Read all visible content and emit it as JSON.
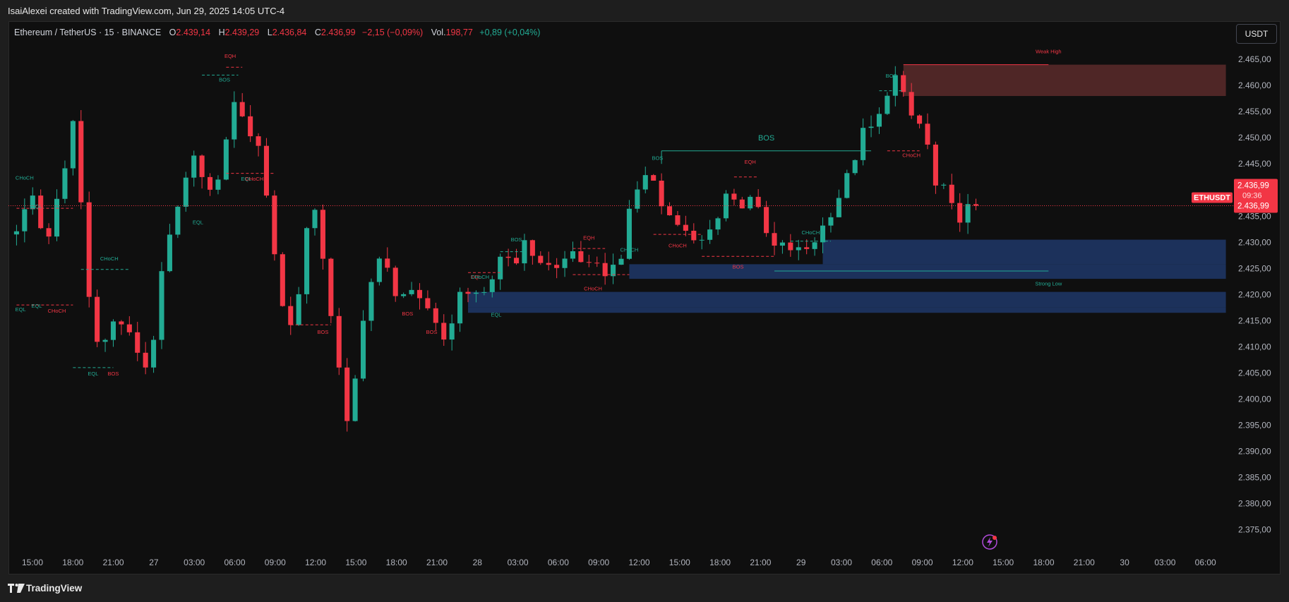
{
  "header": {
    "credit": "IsaiAlexei created with TradingView.com, Jun 29, 2025 14:05 UTC-4"
  },
  "legend": {
    "symbol": "Ethereum / TetherUS · 15 · BINANCE",
    "open_label": "O",
    "open": "2.439,14",
    "high_label": "H",
    "high": "2.439,29",
    "low_label": "L",
    "low": "2.436,84",
    "close_label": "C",
    "close": "2.436,99",
    "change": "−2,15 (−0,09%)",
    "vol_label": "Vol.",
    "vol": "198,77",
    "vol_change": "+0,89 (+0,04%)"
  },
  "currency_button": "USDT",
  "footer": {
    "brand": "TradingView"
  },
  "colors": {
    "up": "#22ab94",
    "down": "#f23645",
    "background": "#0f0f0f",
    "demand_zone": "#1f3a6e",
    "supply_zone": "#5a2a2a",
    "price_label": "#f23645"
  },
  "chart_data": {
    "type": "candlestick",
    "symbol": "ETHUSDT",
    "ylim": [
      2371,
      2468
    ],
    "y_ticks": [
      "2.465,00",
      "2.460,00",
      "2.455,00",
      "2.450,00",
      "2.445,00",
      "2.440,00",
      "2.435,00",
      "2.430,00",
      "2.425,00",
      "2.420,00",
      "2.415,00",
      "2.410,00",
      "2.405,00",
      "2.400,00",
      "2.395,00",
      "2.390,00",
      "2.385,00",
      "2.380,00",
      "2.375,00"
    ],
    "y_tick_values": [
      2465,
      2460,
      2455,
      2450,
      2445,
      2440,
      2435,
      2430,
      2425,
      2420,
      2415,
      2410,
      2405,
      2400,
      2395,
      2390,
      2385,
      2380,
      2375
    ],
    "x_ticks": [
      "15:00",
      "18:00",
      "21:00",
      "27",
      "03:00",
      "06:00",
      "09:00",
      "12:00",
      "15:00",
      "18:00",
      "21:00",
      "28",
      "03:00",
      "06:00",
      "09:00",
      "12:00",
      "15:00",
      "18:00",
      "21:00",
      "29",
      "03:00",
      "06:00",
      "09:00",
      "12:00",
      "15:00",
      "18:00",
      "21:00",
      "30",
      "03:00",
      "06:00"
    ],
    "current_price": {
      "symbol_label": "ETHUSDT",
      "price": "2.436,99",
      "countdown": "09:36",
      "value": 2436.99
    },
    "path": [
      [
        0,
        2431
      ],
      [
        3,
        2440
      ],
      [
        4,
        2428
      ],
      [
        7,
        2446
      ],
      [
        8,
        2458
      ],
      [
        9,
        2424
      ],
      [
        11,
        2409
      ],
      [
        13,
        2416
      ],
      [
        15,
        2411
      ],
      [
        17,
        2405
      ],
      [
        19,
        2428
      ],
      [
        21,
        2438
      ],
      [
        23,
        2450
      ],
      [
        24,
        2437
      ],
      [
        26,
        2444
      ],
      [
        28,
        2461
      ],
      [
        29,
        2448
      ],
      [
        30,
        2453
      ],
      [
        31,
        2446
      ],
      [
        32,
        2434
      ],
      [
        34,
        2414
      ],
      [
        35,
        2414
      ],
      [
        37,
        2437
      ],
      [
        38,
        2434
      ],
      [
        40,
        2412
      ],
      [
        41,
        2401
      ],
      [
        42,
        2391
      ],
      [
        43,
        2412
      ],
      [
        45,
        2425
      ],
      [
        46,
        2427
      ],
      [
        48,
        2419
      ],
      [
        49,
        2421
      ],
      [
        50,
        2419
      ],
      [
        52,
        2417
      ],
      [
        54,
        2410
      ],
      [
        55,
        2419
      ],
      [
        57,
        2421
      ],
      [
        59,
        2420
      ],
      [
        61,
        2429
      ],
      [
        63,
        2424
      ],
      [
        64,
        2433
      ],
      [
        65,
        2425
      ],
      [
        67,
        2427
      ],
      [
        68,
        2422
      ],
      [
        69,
        2430
      ],
      [
        71,
        2425
      ],
      [
        72,
        2427
      ],
      [
        74,
        2424
      ],
      [
        76,
        2428
      ],
      [
        77,
        2443
      ],
      [
        78,
        2437
      ],
      [
        79,
        2445
      ],
      [
        81,
        2436
      ],
      [
        83,
        2433
      ],
      [
        85,
        2429
      ],
      [
        87,
        2433
      ],
      [
        89,
        2441
      ],
      [
        90,
        2436
      ],
      [
        92,
        2440
      ],
      [
        93,
        2433
      ],
      [
        95,
        2428
      ],
      [
        96,
        2430
      ],
      [
        97,
        2428
      ],
      [
        99,
        2429
      ],
      [
        101,
        2434
      ],
      [
        103,
        2440
      ],
      [
        105,
        2448
      ],
      [
        106,
        2453
      ],
      [
        107,
        2451
      ],
      [
        108,
        2456
      ],
      [
        109,
        2461
      ],
      [
        110,
        2462
      ],
      [
        111,
        2455
      ],
      [
        113,
        2452
      ],
      [
        114,
        2446
      ],
      [
        115,
        2437
      ],
      [
        116,
        2442
      ],
      [
        117,
        2433
      ],
      [
        118,
        2436
      ],
      [
        119,
        2437
      ]
    ],
    "zones": [
      {
        "kind": "supply",
        "x0": 110,
        "x1": 150,
        "top": 2464,
        "bottom": 2458
      },
      {
        "kind": "demand",
        "x0": 100,
        "x1": 150,
        "top": 2430.5,
        "bottom": 2425.8
      },
      {
        "kind": "demand",
        "x0": 76,
        "x1": 150,
        "top": 2425.8,
        "bottom": 2423
      },
      {
        "kind": "demand",
        "x0": 56,
        "x1": 150,
        "top": 2420.5,
        "bottom": 2417.5
      },
      {
        "kind": "demand",
        "x0": 56,
        "x1": 150,
        "top": 2417.5,
        "bottom": 2416.5
      }
    ],
    "structure_lines": [
      {
        "kind": "solid",
        "color": "up",
        "x0": 80,
        "x1": 106,
        "y": 2447.5,
        "label": "BOS",
        "label_x": 93,
        "label_y": 2449.5,
        "big": true
      },
      {
        "kind": "solid",
        "color": "down",
        "x0": 110,
        "x1": 128,
        "y": 2464,
        "label": "Weak High",
        "label_x": 128,
        "label_y": 2466.2
      },
      {
        "kind": "solid",
        "color": "up",
        "x0": 94,
        "x1": 128,
        "y": 2424.5,
        "label": "Strong Low",
        "label_x": 128,
        "label_y": 2421.7
      }
    ],
    "labels": [
      {
        "text": "CHoCH",
        "x": 1,
        "y": 2442,
        "color": "up"
      },
      {
        "text": "EQL",
        "x": 2.5,
        "y": 2436.5,
        "color": "up"
      },
      {
        "text": "EQL",
        "x": 2.5,
        "y": 2417.5,
        "color": "up"
      },
      {
        "text": "EQL",
        "x": 0.5,
        "y": 2416.8,
        "color": "up"
      },
      {
        "text": "CHoCH",
        "x": 5,
        "y": 2416.5,
        "color": "down"
      },
      {
        "text": "CHoCH",
        "x": 11.5,
        "y": 2426.5,
        "color": "up"
      },
      {
        "text": "EQL",
        "x": 9.5,
        "y": 2404.5,
        "color": "up"
      },
      {
        "text": "BOS",
        "x": 12,
        "y": 2404.5,
        "color": "down"
      },
      {
        "text": "EQL",
        "x": 22.5,
        "y": 2433.5,
        "color": "up"
      },
      {
        "text": "EQH",
        "x": 26.5,
        "y": 2465.3,
        "color": "down"
      },
      {
        "text": "BOS",
        "x": 25.8,
        "y": 2460.8,
        "color": "up"
      },
      {
        "text": "EQL",
        "x": 28.5,
        "y": 2441.8,
        "color": "up"
      },
      {
        "text": "CHoCH",
        "x": 29.5,
        "y": 2441.8,
        "color": "down"
      },
      {
        "text": "BOS",
        "x": 38,
        "y": 2412.5,
        "color": "down"
      },
      {
        "text": "BOS",
        "x": 48.5,
        "y": 2416,
        "color": "down"
      },
      {
        "text": "BOS",
        "x": 51.5,
        "y": 2412.5,
        "color": "down"
      },
      {
        "text": "EQL",
        "x": 57,
        "y": 2423,
        "color": "down"
      },
      {
        "text": "CHoCH",
        "x": 57.5,
        "y": 2423,
        "color": "up"
      },
      {
        "text": "EQL",
        "x": 59.5,
        "y": 2415.8,
        "color": "up"
      },
      {
        "text": "BOS",
        "x": 62,
        "y": 2430.2,
        "color": "up"
      },
      {
        "text": "EQH",
        "x": 71,
        "y": 2430.5,
        "color": "down"
      },
      {
        "text": "CHoCH",
        "x": 71.5,
        "y": 2420.8,
        "color": "down"
      },
      {
        "text": "CHoCH",
        "x": 76,
        "y": 2428.2,
        "color": "up"
      },
      {
        "text": "BOS",
        "x": 79.5,
        "y": 2445.8,
        "color": "up"
      },
      {
        "text": "CHoCH",
        "x": 82,
        "y": 2429,
        "color": "down"
      },
      {
        "text": "EQH",
        "x": 91,
        "y": 2445,
        "color": "down"
      },
      {
        "text": "BOS",
        "x": 89.5,
        "y": 2425,
        "color": "down"
      },
      {
        "text": "CHoCH",
        "x": 98.5,
        "y": 2431.5,
        "color": "up"
      },
      {
        "text": "BOS",
        "x": 108.5,
        "y": 2461.5,
        "color": "up"
      },
      {
        "text": "CHoCH",
        "x": 111,
        "y": 2446.3,
        "color": "down"
      }
    ],
    "dashed_segments": [
      {
        "x0": 0,
        "x1": 7,
        "y": 2436.5,
        "color": "down"
      },
      {
        "x0": 0,
        "x1": 7,
        "y": 2418,
        "color": "down"
      },
      {
        "x0": 8,
        "x1": 14,
        "y": 2424.8,
        "color": "up"
      },
      {
        "x0": 7,
        "x1": 12,
        "y": 2406,
        "color": "up"
      },
      {
        "x0": 23,
        "x1": 27.5,
        "y": 2462,
        "color": "up"
      },
      {
        "x0": 26,
        "x1": 28,
        "y": 2463.5,
        "color": "down"
      },
      {
        "x0": 26,
        "x1": 32,
        "y": 2443.2,
        "color": "down"
      },
      {
        "x0": 34,
        "x1": 39,
        "y": 2414.2,
        "color": "down"
      },
      {
        "x0": 56,
        "x1": 60,
        "y": 2424.2,
        "color": "down"
      },
      {
        "x0": 60,
        "x1": 63,
        "y": 2428.2,
        "color": "up"
      },
      {
        "x0": 69,
        "x1": 73,
        "y": 2428.8,
        "color": "down"
      },
      {
        "x0": 69,
        "x1": 76,
        "y": 2423.8,
        "color": "down"
      },
      {
        "x0": 79,
        "x1": 85,
        "y": 2431.5,
        "color": "down"
      },
      {
        "x0": 85,
        "x1": 94,
        "y": 2427.3,
        "color": "down"
      },
      {
        "x0": 89,
        "x1": 92,
        "y": 2442.5,
        "color": "down"
      },
      {
        "x0": 107,
        "x1": 110,
        "y": 2459,
        "color": "up"
      },
      {
        "x0": 108,
        "x1": 112,
        "y": 2447.5,
        "color": "down"
      },
      {
        "x0": 96,
        "x1": 101,
        "y": 2430.2,
        "color": "up"
      }
    ],
    "total_candles": 120,
    "x_range": [
      -1,
      151
    ]
  }
}
